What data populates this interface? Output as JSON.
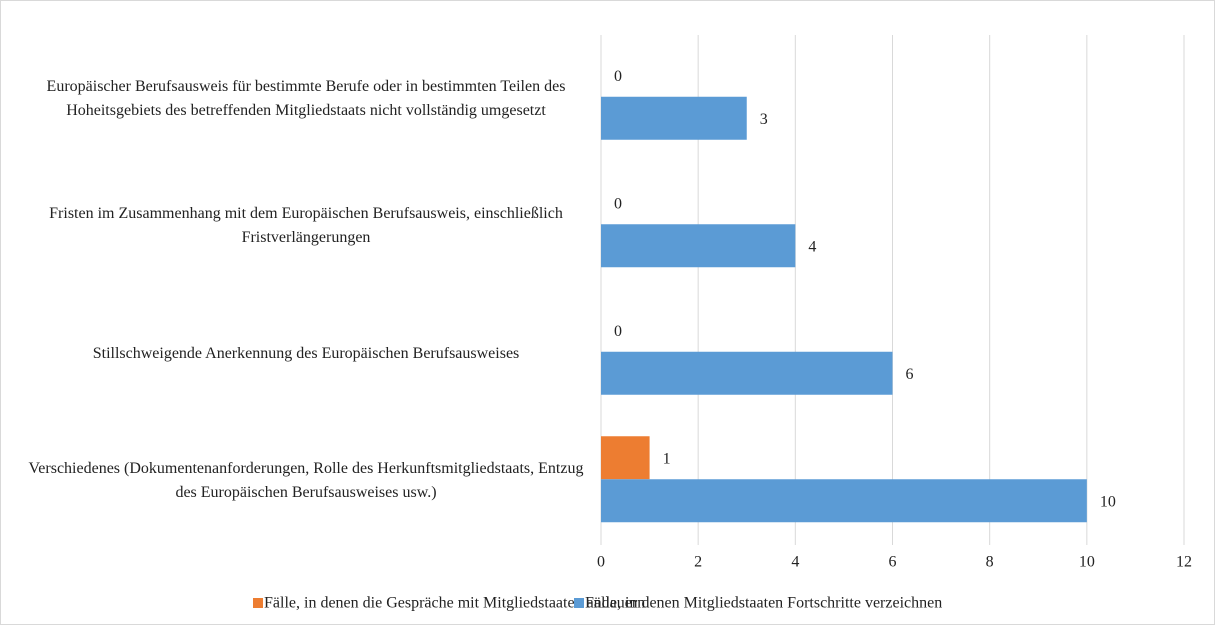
{
  "chart_data": {
    "type": "bar",
    "orientation": "horizontal",
    "categories": [
      "Europäischer Berufsausweis für bestimmte Berufe oder in bestimmten Teilen des Hoheitsgebiets des betreffenden Mitgliedstaats nicht vollständig umgesetzt",
      "Fristen im Zusammenhang mit dem Europäischen Berufsausweis, einschließlich Fristverlängerungen",
      "Stillschweigende Anerkennung des Europäischen Berufsausweises",
      "Verschiedenes (Dokumentenanforderungen, Rolle des Herkunftsmitgliedstaats, Entzug des Europäischen Berufsausweises usw.)"
    ],
    "series": [
      {
        "name": "Fälle, in denen die Gespräche mit Mitgliedstaaten andauern",
        "color": "#ed7d31",
        "values": [
          0,
          0,
          0,
          1
        ]
      },
      {
        "name": "Fälle, in denen Mitgliedstaaten Fortschritte verzeichnen",
        "color": "#5b9bd5",
        "values": [
          3,
          4,
          6,
          10
        ]
      }
    ],
    "xlim": [
      0,
      12
    ],
    "xticks": [
      0,
      2,
      4,
      6,
      8,
      10,
      12
    ],
    "grid": true,
    "legend": "bottom"
  }
}
